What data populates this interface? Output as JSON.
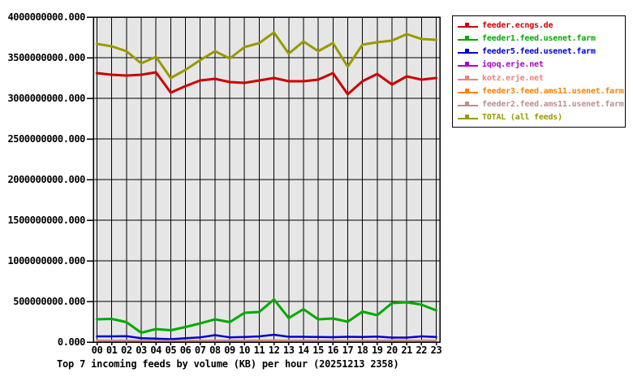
{
  "title": "Top 7 incoming feeds by volume (KB) per hour (20251213 2358)",
  "chart_data": {
    "type": "line",
    "title": "Top 7 incoming feeds by volume (KB) per hour (20251213 2358)",
    "xlabel": "",
    "ylabel": "",
    "grid": true,
    "plot_bg": "#e6e6e6",
    "grid_color": "#000000",
    "legend_position": "outside-top-right",
    "x": [
      "00",
      "01",
      "02",
      "03",
      "04",
      "05",
      "06",
      "07",
      "08",
      "09",
      "10",
      "11",
      "12",
      "13",
      "14",
      "15",
      "16",
      "17",
      "18",
      "19",
      "20",
      "21",
      "22",
      "23"
    ],
    "y_axis": {
      "min": 0,
      "max": 4000000000,
      "tick_step": 500000000,
      "tick_labels": [
        "0.000",
        "500000000.000",
        "1000000000.000",
        "1500000000.000",
        "2000000000.000",
        "2500000000.000",
        "3000000000.000",
        "3500000000.000",
        "4000000000.000"
      ]
    },
    "series": [
      {
        "name": "feeder.ecngs.de",
        "color": "#cc0000",
        "width": 3,
        "values": [
          3310000000,
          3290000000,
          3280000000,
          3290000000,
          3320000000,
          3070000000,
          3150000000,
          3220000000,
          3240000000,
          3200000000,
          3190000000,
          3220000000,
          3250000000,
          3210000000,
          3210000000,
          3230000000,
          3310000000,
          3050000000,
          3210000000,
          3300000000,
          3170000000,
          3270000000,
          3230000000,
          3250000000
        ]
      },
      {
        "name": "feeder1.feed.usenet.farm",
        "color": "#00aa00",
        "width": 3,
        "values": [
          280000000,
          285000000,
          245000000,
          115000000,
          160000000,
          145000000,
          185000000,
          230000000,
          280000000,
          245000000,
          360000000,
          370000000,
          525000000,
          295000000,
          405000000,
          280000000,
          290000000,
          250000000,
          375000000,
          330000000,
          480000000,
          490000000,
          460000000,
          390000000
        ]
      },
      {
        "name": "feeder5.feed.usenet.farm",
        "color": "#0000cc",
        "width": 2.5,
        "values": [
          70000000,
          70000000,
          72000000,
          48000000,
          42000000,
          35000000,
          48000000,
          58000000,
          85000000,
          58000000,
          62000000,
          70000000,
          90000000,
          65000000,
          65000000,
          62000000,
          60000000,
          65000000,
          62000000,
          68000000,
          55000000,
          55000000,
          70000000,
          62000000
        ]
      },
      {
        "name": "iqoq.erje.net",
        "color": "#aa00cc",
        "width": 2,
        "values": [
          9000000,
          9000000,
          9000000,
          8000000,
          8000000,
          7000000,
          8000000,
          9000000,
          9000000,
          9000000,
          9000000,
          9000000,
          10000000,
          9000000,
          9000000,
          9000000,
          8000000,
          8000000,
          9000000,
          9000000,
          9000000,
          10000000,
          9000000,
          9000000
        ]
      },
      {
        "name": "kotz.erje.net",
        "color": "#f08080",
        "width": 2,
        "values": [
          14000000,
          13000000,
          13000000,
          13000000,
          12000000,
          11000000,
          12000000,
          13000000,
          14000000,
          13000000,
          13000000,
          14000000,
          15000000,
          13000000,
          13000000,
          13000000,
          13000000,
          12000000,
          13000000,
          13000000,
          14000000,
          14000000,
          13000000,
          13000000
        ]
      },
      {
        "name": "feeder3.feed.ams11.usenet.farm",
        "color": "#ff8000",
        "width": 2,
        "values": [
          17000000,
          16000000,
          16000000,
          15000000,
          15000000,
          14000000,
          15000000,
          16000000,
          17000000,
          16000000,
          16000000,
          17000000,
          18000000,
          16000000,
          16000000,
          16000000,
          15000000,
          15000000,
          16000000,
          16000000,
          17000000,
          17000000,
          16000000,
          16000000
        ]
      },
      {
        "name": "feeder2.feed.ams11.usenet.farm",
        "color": "#bc8f8f",
        "width": 2,
        "values": [
          21000000,
          20000000,
          20000000,
          19000000,
          18000000,
          17000000,
          18000000,
          20000000,
          21000000,
          20000000,
          20000000,
          21000000,
          22000000,
          20000000,
          20000000,
          19000000,
          19000000,
          18000000,
          19000000,
          20000000,
          21000000,
          21000000,
          20000000,
          20000000
        ]
      },
      {
        "name": "TOTAL (all feeds)",
        "color": "#999900",
        "width": 3,
        "values": [
          3670000000,
          3640000000,
          3580000000,
          3430000000,
          3510000000,
          3250000000,
          3350000000,
          3470000000,
          3580000000,
          3490000000,
          3630000000,
          3680000000,
          3810000000,
          3550000000,
          3700000000,
          3580000000,
          3680000000,
          3390000000,
          3660000000,
          3690000000,
          3710000000,
          3790000000,
          3730000000,
          3720000000
        ]
      }
    ]
  }
}
